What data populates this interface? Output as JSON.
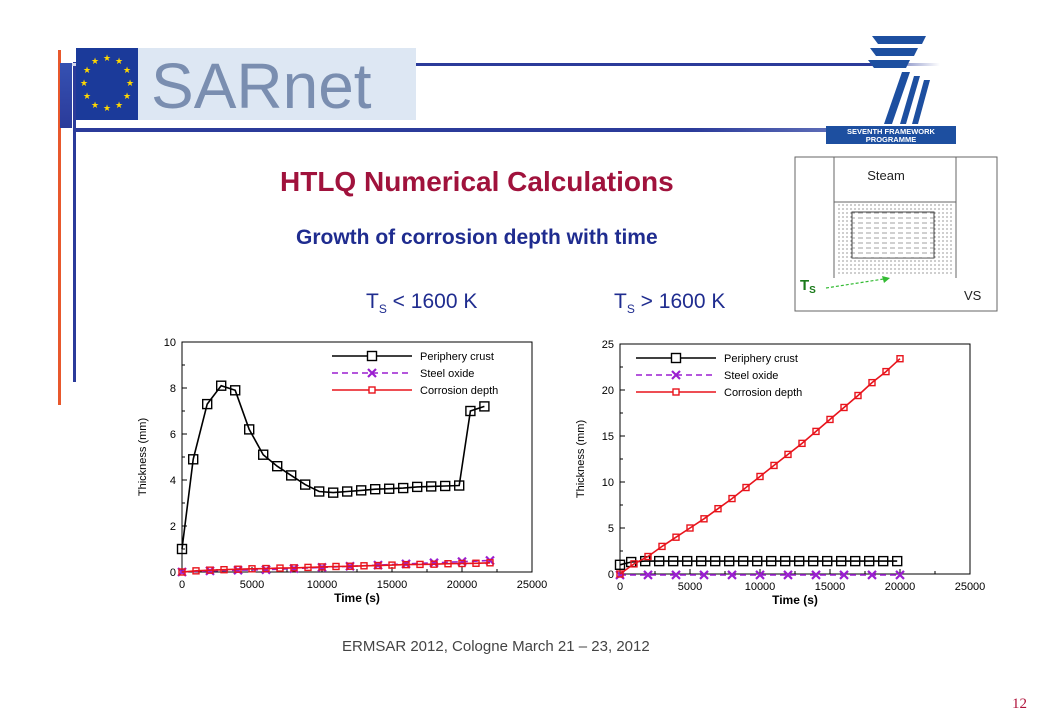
{
  "header": {
    "logo_text": "SARnet",
    "fp7_text_line1": "SEVENTH FRAMEWORK",
    "fp7_text_line2": "PROGRAMME"
  },
  "title": "HTLQ Numerical Calculations",
  "subtitle": "Growth of corrosion depth with time",
  "conditions": {
    "left": {
      "prefix": "T",
      "sub": "S",
      "suffix": " < 1600 K"
    },
    "right": {
      "prefix": "T",
      "sub": "S",
      "suffix": "  > 1600 K"
    }
  },
  "schematic": {
    "steam_label": "Steam",
    "ts_label": "TS",
    "ts_prefix": "T",
    "ts_sub": "S",
    "vs_label": "VS"
  },
  "footer": "ERMSAR 2012, Cologne March 21 – 23, 2012",
  "page_number": "12",
  "colors": {
    "title": "#a0123c",
    "subtitle": "#1f2c8f",
    "periphery": "#000000",
    "steel": "#9b1fd0",
    "corrosion": "#e8141c"
  },
  "chart_data": [
    {
      "type": "line",
      "xlabel": "Time (s)",
      "ylabel": "Thickness (mm)",
      "xlim": [
        0,
        25000
      ],
      "ylim": [
        0,
        10
      ],
      "xticks": [
        0,
        5000,
        10000,
        15000,
        20000,
        25000
      ],
      "yticks": [
        0,
        2,
        4,
        6,
        8,
        10
      ],
      "grid": false,
      "legend_position": "top-right",
      "series": [
        {
          "name": "Periphery crust",
          "marker": "square",
          "color": "#000000",
          "x": [
            0,
            800,
            1800,
            2800,
            3800,
            4800,
            5800,
            6800,
            7800,
            8800,
            9800,
            10800,
            11800,
            12800,
            13800,
            14800,
            15800,
            16800,
            17800,
            18800,
            19800,
            20600,
            21600
          ],
          "y": [
            1.0,
            4.9,
            7.3,
            8.1,
            7.9,
            6.2,
            5.1,
            4.6,
            4.2,
            3.8,
            3.5,
            3.45,
            3.5,
            3.55,
            3.6,
            3.62,
            3.65,
            3.7,
            3.72,
            3.74,
            3.76,
            7.0,
            7.2
          ]
        },
        {
          "name": "Steel oxide",
          "marker": "x",
          "color": "#9b1fd0",
          "x": [
            0,
            2000,
            4000,
            6000,
            8000,
            10000,
            12000,
            14000,
            16000,
            18000,
            20000,
            22000
          ],
          "y": [
            0,
            0.05,
            0.08,
            0.1,
            0.15,
            0.2,
            0.25,
            0.3,
            0.35,
            0.4,
            0.45,
            0.5
          ]
        },
        {
          "name": "Corrosion depth",
          "marker": "square",
          "color": "#e8141c",
          "x": [
            0,
            1000,
            2000,
            3000,
            4000,
            5000,
            6000,
            7000,
            8000,
            9000,
            10000,
            11000,
            12000,
            13000,
            14000,
            15000,
            16000,
            17000,
            18000,
            19000,
            20000,
            21000,
            22000
          ],
          "y": [
            0,
            0.05,
            0.08,
            0.1,
            0.12,
            0.14,
            0.15,
            0.17,
            0.18,
            0.2,
            0.22,
            0.24,
            0.25,
            0.27,
            0.28,
            0.3,
            0.32,
            0.33,
            0.34,
            0.36,
            0.37,
            0.38,
            0.4
          ]
        }
      ]
    },
    {
      "type": "line",
      "xlabel": "Time (s)",
      "ylabel": "Thickness (mm)",
      "xlim": [
        0,
        25000
      ],
      "ylim": [
        0,
        25
      ],
      "xticks": [
        0,
        5000,
        10000,
        15000,
        20000,
        25000
      ],
      "yticks": [
        0,
        5,
        10,
        15,
        20,
        25
      ],
      "grid": false,
      "legend_position": "top-left",
      "series": [
        {
          "name": "Periphery crust",
          "marker": "square",
          "color": "#000000",
          "x": [
            0,
            800,
            1800,
            2800,
            3800,
            4800,
            5800,
            6800,
            7800,
            8800,
            9800,
            10800,
            11800,
            12800,
            13800,
            14800,
            15800,
            16800,
            17800,
            18800,
            19800
          ],
          "y": [
            1.0,
            1.3,
            1.4,
            1.4,
            1.4,
            1.4,
            1.4,
            1.4,
            1.4,
            1.4,
            1.4,
            1.4,
            1.4,
            1.4,
            1.4,
            1.4,
            1.4,
            1.4,
            1.4,
            1.4,
            1.4
          ]
        },
        {
          "name": "Steel oxide",
          "marker": "x",
          "color": "#9b1fd0",
          "x": [
            0,
            2000,
            4000,
            6000,
            8000,
            10000,
            12000,
            14000,
            16000,
            18000,
            20000
          ],
          "y": [
            -0.1,
            -0.1,
            -0.1,
            -0.1,
            -0.1,
            -0.1,
            -0.1,
            -0.1,
            -0.1,
            -0.1,
            -0.1
          ]
        },
        {
          "name": "Corrosion depth",
          "marker": "square",
          "color": "#e8141c",
          "x": [
            0,
            1000,
            2000,
            3000,
            4000,
            5000,
            6000,
            7000,
            8000,
            9000,
            10000,
            11000,
            12000,
            13000,
            14000,
            15000,
            16000,
            17000,
            18000,
            19000,
            20000
          ],
          "y": [
            0,
            1.1,
            1.9,
            3.0,
            4.0,
            5.0,
            6.0,
            7.1,
            8.2,
            9.4,
            10.6,
            11.8,
            13.0,
            14.2,
            15.5,
            16.8,
            18.1,
            19.4,
            20.8,
            22.0,
            23.4
          ]
        }
      ]
    }
  ]
}
